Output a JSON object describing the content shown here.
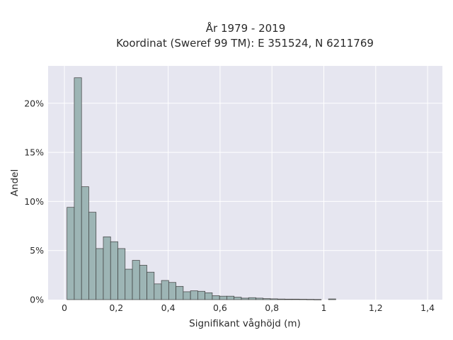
{
  "chart_data": {
    "type": "bar",
    "title_lines": [
      "År 1979 - 2019",
      "Koordinat (Sweref 99 TM): E 351524, N 6211769"
    ],
    "xlabel": "Signifikant våghöjd (m)",
    "ylabel": "Andel",
    "xlim": [
      -0.05,
      1.45
    ],
    "ylim": [
      0,
      23.5
    ],
    "x_ticks": [
      {
        "value": 0,
        "label": "0"
      },
      {
        "value": 0.2,
        "label": "0,2"
      },
      {
        "value": 0.4,
        "label": "0,4"
      },
      {
        "value": 0.6,
        "label": "0,6"
      },
      {
        "value": 0.8,
        "label": "0,8"
      },
      {
        "value": 1.0,
        "label": "1"
      },
      {
        "value": 1.2,
        "label": "1,2"
      },
      {
        "value": 1.4,
        "label": "1,4"
      }
    ],
    "y_ticks": [
      {
        "value": 0,
        "label": "0%"
      },
      {
        "value": 5,
        "label": "5%"
      },
      {
        "value": 10,
        "label": "10%"
      },
      {
        "value": 15,
        "label": "15%"
      },
      {
        "value": 20,
        "label": "20%"
      }
    ],
    "grid": true,
    "bin_width": 0.028,
    "bin_start": 0.01,
    "values": [
      9.4,
      22.6,
      11.5,
      8.9,
      5.2,
      6.4,
      5.9,
      5.2,
      3.1,
      4.0,
      3.5,
      2.8,
      1.6,
      1.95,
      1.75,
      1.35,
      0.8,
      0.9,
      0.85,
      0.7,
      0.4,
      0.35,
      0.35,
      0.25,
      0.15,
      0.2,
      0.15,
      0.1,
      0.08,
      0.06,
      0.05,
      0.05,
      0.04,
      0.03,
      0.02,
      0.0,
      0.07
    ],
    "colors": {
      "plot_bg": "#e6e6f0",
      "grid": "#ffffff",
      "bar_fill": "#9db5b5",
      "bar_stroke": "#3d3d3d"
    }
  }
}
